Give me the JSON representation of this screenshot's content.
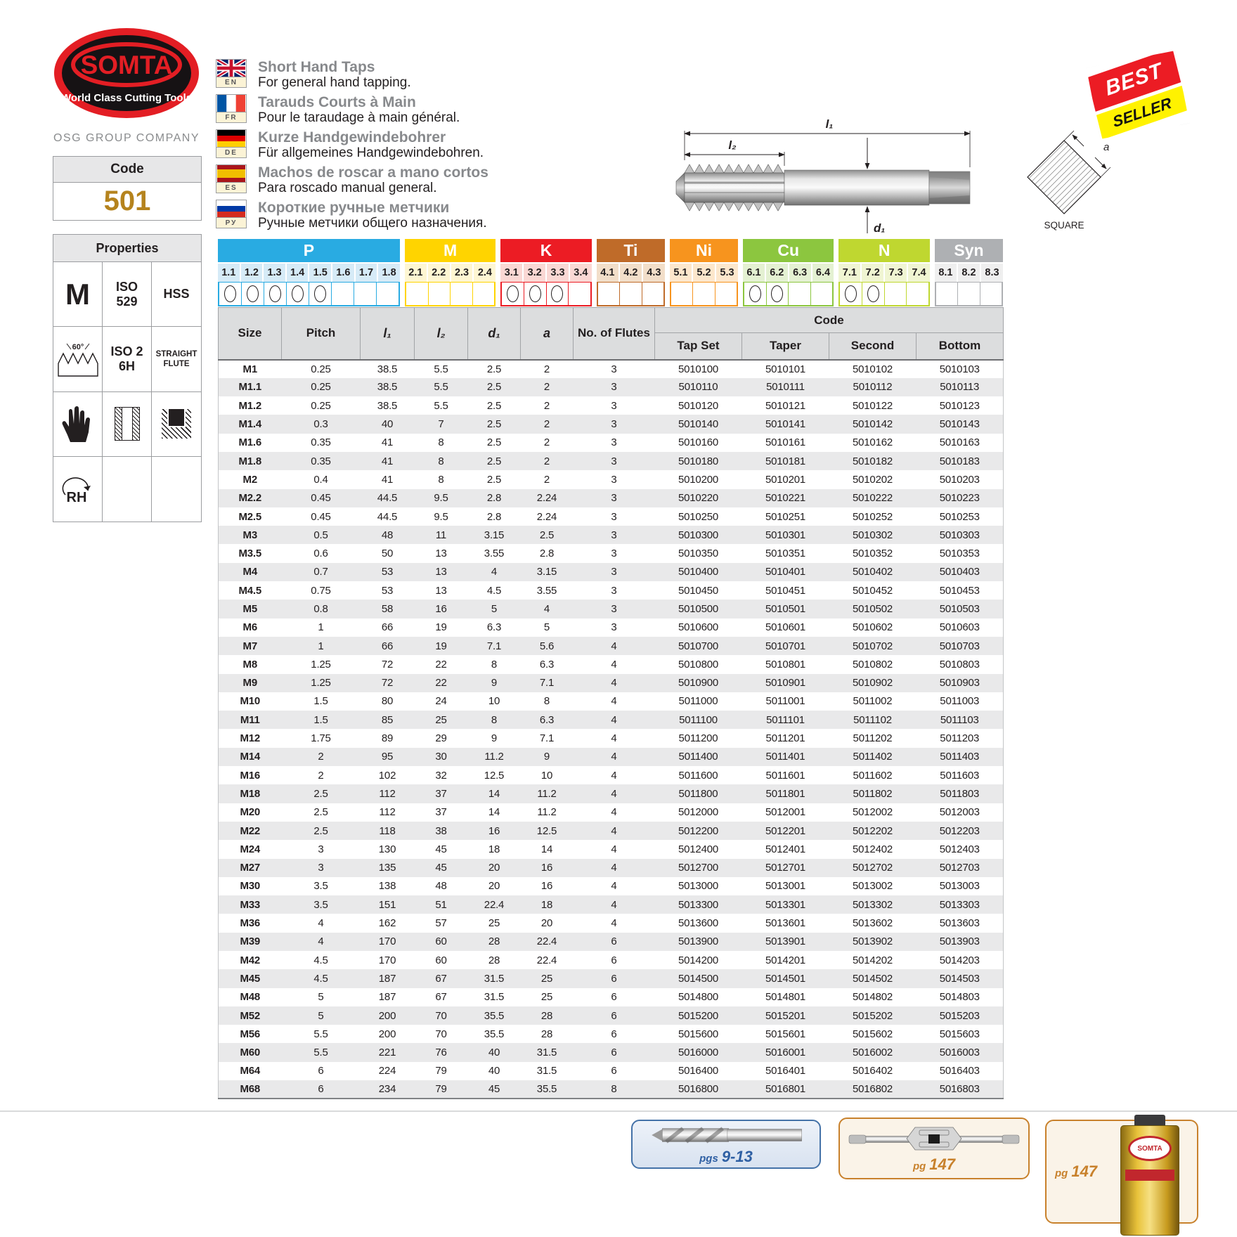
{
  "brand": {
    "name": "SOMTA",
    "tagline": "World Class Cutting Tools",
    "company": "OSG GROUP COMPANY"
  },
  "code_panel": {
    "label": "Code",
    "value": "501"
  },
  "properties": {
    "title": "Properties",
    "thread_form": "M",
    "iso_line1": "ISO",
    "iso_line2": "529",
    "material": "HSS",
    "angle": "60°",
    "tolerance_line1": "ISO 2",
    "tolerance_line2": "6H",
    "flute_line1": "STRAIGHT",
    "flute_line2": "FLUTE",
    "rotation": "RH"
  },
  "languages": [
    {
      "code": "EN",
      "title": "Short Hand Taps",
      "subtitle": "For general hand tapping."
    },
    {
      "code": "FR",
      "title": "Tarauds Courts à Main",
      "subtitle": "Pour le taraudage à main général."
    },
    {
      "code": "DE",
      "title": "Kurze Handgewindebohrer",
      "subtitle": "Für allgemeines Handgewindebohren."
    },
    {
      "code": "ES",
      "title": "Machos de roscar a mano cortos",
      "subtitle": "Para roscado manual general."
    },
    {
      "code": "РУ",
      "title": "Короткие ручные метчики",
      "subtitle": "Ручные метчики общего назначения."
    }
  ],
  "badge": {
    "line1": "BEST",
    "line2": "SELLER"
  },
  "diagram": {
    "l1": "l₁",
    "l2": "l₂",
    "d1": "d₁",
    "a": "a",
    "square": "SQUARE"
  },
  "materials": {
    "groups": [
      {
        "label": "P",
        "color": "#29ABE2",
        "tint": "#D6EBF7",
        "cells": [
          {
            "n": "1.1",
            "marked": true
          },
          {
            "n": "1.2",
            "marked": true
          },
          {
            "n": "1.3",
            "marked": true
          },
          {
            "n": "1.4",
            "marked": true
          },
          {
            "n": "1.5",
            "marked": true
          },
          {
            "n": "1.6",
            "marked": false
          },
          {
            "n": "1.7",
            "marked": false
          },
          {
            "n": "1.8",
            "marked": false
          }
        ]
      },
      {
        "label": "M",
        "color": "#FFD400",
        "tint": "#FEF6D2",
        "cells": [
          {
            "n": "2.1",
            "marked": false
          },
          {
            "n": "2.2",
            "marked": false
          },
          {
            "n": "2.3",
            "marked": false
          },
          {
            "n": "2.4",
            "marked": false
          }
        ]
      },
      {
        "label": "K",
        "color": "#EC1C24",
        "tint": "#FAD8D4",
        "cells": [
          {
            "n": "3.1",
            "marked": true
          },
          {
            "n": "3.2",
            "marked": true
          },
          {
            "n": "3.3",
            "marked": true
          },
          {
            "n": "3.4",
            "marked": false
          }
        ]
      },
      {
        "label": "Ti",
        "color": "#BF6B29",
        "tint": "#F2DEC9",
        "cells": [
          {
            "n": "4.1",
            "marked": false
          },
          {
            "n": "4.2",
            "marked": false
          },
          {
            "n": "4.3",
            "marked": false
          }
        ]
      },
      {
        "label": "Ni",
        "color": "#F7941E",
        "tint": "#FDE7CC",
        "cells": [
          {
            "n": "5.1",
            "marked": false
          },
          {
            "n": "5.2",
            "marked": false
          },
          {
            "n": "5.3",
            "marked": false
          }
        ]
      },
      {
        "label": "Cu",
        "color": "#8CC63F",
        "tint": "#E4F1D2",
        "cells": [
          {
            "n": "6.1",
            "marked": true
          },
          {
            "n": "6.2",
            "marked": true
          },
          {
            "n": "6.3",
            "marked": false
          },
          {
            "n": "6.4",
            "marked": false
          }
        ]
      },
      {
        "label": "N",
        "color": "#BFD730",
        "tint": "#F0F5D2",
        "cells": [
          {
            "n": "7.1",
            "marked": true
          },
          {
            "n": "7.2",
            "marked": true
          },
          {
            "n": "7.3",
            "marked": false
          },
          {
            "n": "7.4",
            "marked": false
          }
        ]
      },
      {
        "label": "Syn",
        "color": "#AEB0B3",
        "tint": "#EFEFEF",
        "cells": [
          {
            "n": "8.1",
            "marked": false
          },
          {
            "n": "8.2",
            "marked": false
          },
          {
            "n": "8.3",
            "marked": false
          }
        ]
      }
    ]
  },
  "table": {
    "headers": [
      "Size",
      "Pitch",
      "l₁",
      "l₂",
      "d₁",
      "a",
      "No. of Flutes"
    ],
    "code_header": "Code",
    "code_subheaders": [
      "Tap Set",
      "Taper",
      "Second",
      "Bottom"
    ],
    "rows": [
      [
        "M1",
        "0.25",
        "38.5",
        "5.5",
        "2.5",
        "2",
        "3",
        "5010100",
        "5010101",
        "5010102",
        "5010103"
      ],
      [
        "M1.1",
        "0.25",
        "38.5",
        "5.5",
        "2.5",
        "2",
        "3",
        "5010110",
        "5010111",
        "5010112",
        "5010113"
      ],
      [
        "M1.2",
        "0.25",
        "38.5",
        "5.5",
        "2.5",
        "2",
        "3",
        "5010120",
        "5010121",
        "5010122",
        "5010123"
      ],
      [
        "M1.4",
        "0.3",
        "40",
        "7",
        "2.5",
        "2",
        "3",
        "5010140",
        "5010141",
        "5010142",
        "5010143"
      ],
      [
        "M1.6",
        "0.35",
        "41",
        "8",
        "2.5",
        "2",
        "3",
        "5010160",
        "5010161",
        "5010162",
        "5010163"
      ],
      [
        "M1.8",
        "0.35",
        "41",
        "8",
        "2.5",
        "2",
        "3",
        "5010180",
        "5010181",
        "5010182",
        "5010183"
      ],
      [
        "M2",
        "0.4",
        "41",
        "8",
        "2.5",
        "2",
        "3",
        "5010200",
        "5010201",
        "5010202",
        "5010203"
      ],
      [
        "M2.2",
        "0.45",
        "44.5",
        "9.5",
        "2.8",
        "2.24",
        "3",
        "5010220",
        "5010221",
        "5010222",
        "5010223"
      ],
      [
        "M2.5",
        "0.45",
        "44.5",
        "9.5",
        "2.8",
        "2.24",
        "3",
        "5010250",
        "5010251",
        "5010252",
        "5010253"
      ],
      [
        "M3",
        "0.5",
        "48",
        "11",
        "3.15",
        "2.5",
        "3",
        "5010300",
        "5010301",
        "5010302",
        "5010303"
      ],
      [
        "M3.5",
        "0.6",
        "50",
        "13",
        "3.55",
        "2.8",
        "3",
        "5010350",
        "5010351",
        "5010352",
        "5010353"
      ],
      [
        "M4",
        "0.7",
        "53",
        "13",
        "4",
        "3.15",
        "3",
        "5010400",
        "5010401",
        "5010402",
        "5010403"
      ],
      [
        "M4.5",
        "0.75",
        "53",
        "13",
        "4.5",
        "3.55",
        "3",
        "5010450",
        "5010451",
        "5010452",
        "5010453"
      ],
      [
        "M5",
        "0.8",
        "58",
        "16",
        "5",
        "4",
        "3",
        "5010500",
        "5010501",
        "5010502",
        "5010503"
      ],
      [
        "M6",
        "1",
        "66",
        "19",
        "6.3",
        "5",
        "3",
        "5010600",
        "5010601",
        "5010602",
        "5010603"
      ],
      [
        "M7",
        "1",
        "66",
        "19",
        "7.1",
        "5.6",
        "4",
        "5010700",
        "5010701",
        "5010702",
        "5010703"
      ],
      [
        "M8",
        "1.25",
        "72",
        "22",
        "8",
        "6.3",
        "4",
        "5010800",
        "5010801",
        "5010802",
        "5010803"
      ],
      [
        "M9",
        "1.25",
        "72",
        "22",
        "9",
        "7.1",
        "4",
        "5010900",
        "5010901",
        "5010902",
        "5010903"
      ],
      [
        "M10",
        "1.5",
        "80",
        "24",
        "10",
        "8",
        "4",
        "5011000",
        "5011001",
        "5011002",
        "5011003"
      ],
      [
        "M11",
        "1.5",
        "85",
        "25",
        "8",
        "6.3",
        "4",
        "5011100",
        "5011101",
        "5011102",
        "5011103"
      ],
      [
        "M12",
        "1.75",
        "89",
        "29",
        "9",
        "7.1",
        "4",
        "5011200",
        "5011201",
        "5011202",
        "5011203"
      ],
      [
        "M14",
        "2",
        "95",
        "30",
        "11.2",
        "9",
        "4",
        "5011400",
        "5011401",
        "5011402",
        "5011403"
      ],
      [
        "M16",
        "2",
        "102",
        "32",
        "12.5",
        "10",
        "4",
        "5011600",
        "5011601",
        "5011602",
        "5011603"
      ],
      [
        "M18",
        "2.5",
        "112",
        "37",
        "14",
        "11.2",
        "4",
        "5011800",
        "5011801",
        "5011802",
        "5011803"
      ],
      [
        "M20",
        "2.5",
        "112",
        "37",
        "14",
        "11.2",
        "4",
        "5012000",
        "5012001",
        "5012002",
        "5012003"
      ],
      [
        "M22",
        "2.5",
        "118",
        "38",
        "16",
        "12.5",
        "4",
        "5012200",
        "5012201",
        "5012202",
        "5012203"
      ],
      [
        "M24",
        "3",
        "130",
        "45",
        "18",
        "14",
        "4",
        "5012400",
        "5012401",
        "5012402",
        "5012403"
      ],
      [
        "M27",
        "3",
        "135",
        "45",
        "20",
        "16",
        "4",
        "5012700",
        "5012701",
        "5012702",
        "5012703"
      ],
      [
        "M30",
        "3.5",
        "138",
        "48",
        "20",
        "16",
        "4",
        "5013000",
        "5013001",
        "5013002",
        "5013003"
      ],
      [
        "M33",
        "3.5",
        "151",
        "51",
        "22.4",
        "18",
        "4",
        "5013300",
        "5013301",
        "5013302",
        "5013303"
      ],
      [
        "M36",
        "4",
        "162",
        "57",
        "25",
        "20",
        "4",
        "5013600",
        "5013601",
        "5013602",
        "5013603"
      ],
      [
        "M39",
        "4",
        "170",
        "60",
        "28",
        "22.4",
        "6",
        "5013900",
        "5013901",
        "5013902",
        "5013903"
      ],
      [
        "M42",
        "4.5",
        "170",
        "60",
        "28",
        "22.4",
        "6",
        "5014200",
        "5014201",
        "5014202",
        "5014203"
      ],
      [
        "M45",
        "4.5",
        "187",
        "67",
        "31.5",
        "25",
        "6",
        "5014500",
        "5014501",
        "5014502",
        "5014503"
      ],
      [
        "M48",
        "5",
        "187",
        "67",
        "31.5",
        "25",
        "6",
        "5014800",
        "5014801",
        "5014802",
        "5014803"
      ],
      [
        "M52",
        "5",
        "200",
        "70",
        "35.5",
        "28",
        "6",
        "5015200",
        "5015201",
        "5015202",
        "5015203"
      ],
      [
        "M56",
        "5.5",
        "200",
        "70",
        "35.5",
        "28",
        "6",
        "5015600",
        "5015601",
        "5015602",
        "5015603"
      ],
      [
        "M60",
        "5.5",
        "221",
        "76",
        "40",
        "31.5",
        "6",
        "5016000",
        "5016001",
        "5016002",
        "5016003"
      ],
      [
        "M64",
        "6",
        "224",
        "79",
        "40",
        "31.5",
        "6",
        "5016400",
        "5016401",
        "5016402",
        "5016403"
      ],
      [
        "M68",
        "6",
        "234",
        "79",
        "45",
        "35.5",
        "8",
        "5016800",
        "5016801",
        "5016802",
        "5016803"
      ]
    ]
  },
  "footer": {
    "boxes": [
      {
        "prefix": "pgs",
        "pages": "9-13"
      },
      {
        "prefix": "pg",
        "pages": "147"
      },
      {
        "prefix": "pg",
        "pages": "147"
      }
    ],
    "can_brand": "SOMTA"
  }
}
